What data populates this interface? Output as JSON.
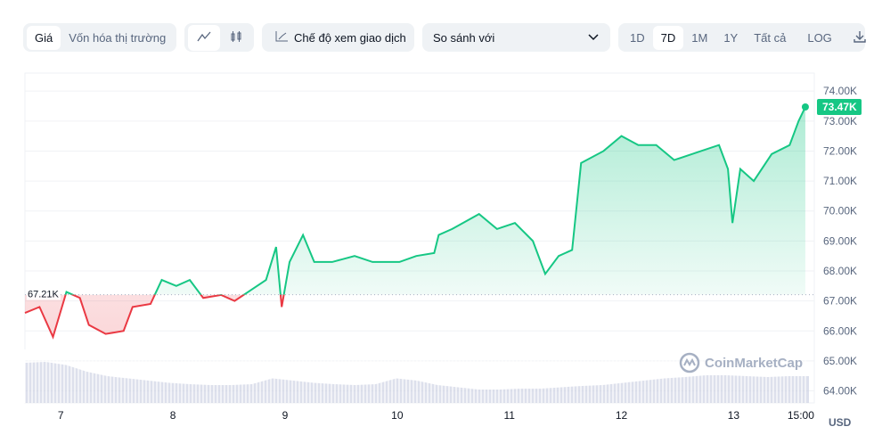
{
  "toolbar": {
    "metric_tabs": [
      {
        "label": "Giá",
        "active": true
      },
      {
        "label": "Vốn hóa thị trường",
        "active": false
      }
    ],
    "chart_type": {
      "line_icon": "line-chart-icon",
      "candle_icon": "candlestick-icon",
      "active": "line"
    },
    "trading_view_label": "Chế độ xem giao dịch",
    "compare_label": "So sánh với",
    "ranges": [
      {
        "label": "1D"
      },
      {
        "label": "7D",
        "active": true
      },
      {
        "label": "1M"
      },
      {
        "label": "1Y"
      },
      {
        "label": "Tất cả"
      }
    ],
    "log_label": "LOG",
    "download_icon": "download-icon"
  },
  "watermark": "CoinMarketCap",
  "currency": "USD",
  "colors": {
    "up": "#16c784",
    "down": "#ea3943",
    "current_badge": "#16c784",
    "volume": "#c6cbe0"
  },
  "chart_data": {
    "type": "line",
    "title": "",
    "xlabel": "",
    "ylabel": "",
    "x_ticks": [
      "7",
      "8",
      "9",
      "10",
      "11",
      "12",
      "13",
      "15:00"
    ],
    "x_tick_values": [
      7,
      8,
      9,
      10,
      11,
      12,
      13,
      13.6
    ],
    "y_ticks": [
      "74.00K",
      "73.00K",
      "72.00K",
      "71.00K",
      "70.00K",
      "69.00K",
      "68.00K",
      "67.00K",
      "66.00K",
      "65.00K",
      "64.00K"
    ],
    "ylim": [
      63.6,
      74.6
    ],
    "xlim": [
      6.68,
      13.72
    ],
    "baseline": {
      "value": 67.21,
      "label": "67.21K"
    },
    "current": {
      "value": 73.47,
      "label": "73.47K"
    },
    "grid": true,
    "points": [
      [
        6.68,
        66.6
      ],
      [
        6.81,
        66.8
      ],
      [
        6.93,
        65.8
      ],
      [
        7.05,
        67.3
      ],
      [
        7.17,
        67.1
      ],
      [
        7.25,
        66.2
      ],
      [
        7.4,
        65.9
      ],
      [
        7.56,
        66.0
      ],
      [
        7.64,
        66.8
      ],
      [
        7.8,
        66.9
      ],
      [
        7.9,
        67.7
      ],
      [
        8.03,
        67.5
      ],
      [
        8.15,
        67.7
      ],
      [
        8.27,
        67.1
      ],
      [
        8.43,
        67.2
      ],
      [
        8.55,
        67.0
      ],
      [
        8.67,
        67.3
      ],
      [
        8.83,
        67.7
      ],
      [
        8.92,
        68.8
      ],
      [
        8.97,
        66.8
      ],
      [
        9.04,
        68.3
      ],
      [
        9.16,
        69.2
      ],
      [
        9.26,
        68.3
      ],
      [
        9.42,
        68.3
      ],
      [
        9.62,
        68.5
      ],
      [
        9.78,
        68.3
      ],
      [
        10.02,
        68.3
      ],
      [
        10.17,
        68.5
      ],
      [
        10.33,
        68.6
      ],
      [
        10.37,
        69.2
      ],
      [
        10.49,
        69.4
      ],
      [
        10.73,
        69.9
      ],
      [
        10.89,
        69.4
      ],
      [
        11.05,
        69.6
      ],
      [
        11.21,
        69.0
      ],
      [
        11.32,
        67.9
      ],
      [
        11.44,
        68.5
      ],
      [
        11.56,
        68.7
      ],
      [
        11.64,
        71.6
      ],
      [
        11.84,
        72.0
      ],
      [
        12.0,
        72.5
      ],
      [
        12.15,
        72.2
      ],
      [
        12.31,
        72.2
      ],
      [
        12.47,
        71.7
      ],
      [
        12.71,
        72.0
      ],
      [
        12.87,
        72.2
      ],
      [
        12.95,
        71.4
      ],
      [
        12.99,
        69.6
      ],
      [
        13.06,
        71.4
      ],
      [
        13.18,
        71.0
      ],
      [
        13.34,
        71.9
      ],
      [
        13.5,
        72.2
      ],
      [
        13.58,
        73.0
      ],
      [
        13.64,
        73.47
      ]
    ],
    "volume_relative": [
      0.9,
      0.92,
      0.85,
      0.7,
      0.6,
      0.55,
      0.5,
      0.45,
      0.42,
      0.4,
      0.4,
      0.42,
      0.55,
      0.5,
      0.45,
      0.42,
      0.4,
      0.42,
      0.55,
      0.5,
      0.4,
      0.35,
      0.3,
      0.3,
      0.32,
      0.32,
      0.35,
      0.38,
      0.4,
      0.45,
      0.5,
      0.55,
      0.58,
      0.62,
      0.62,
      0.6,
      0.58,
      0.6
    ]
  }
}
